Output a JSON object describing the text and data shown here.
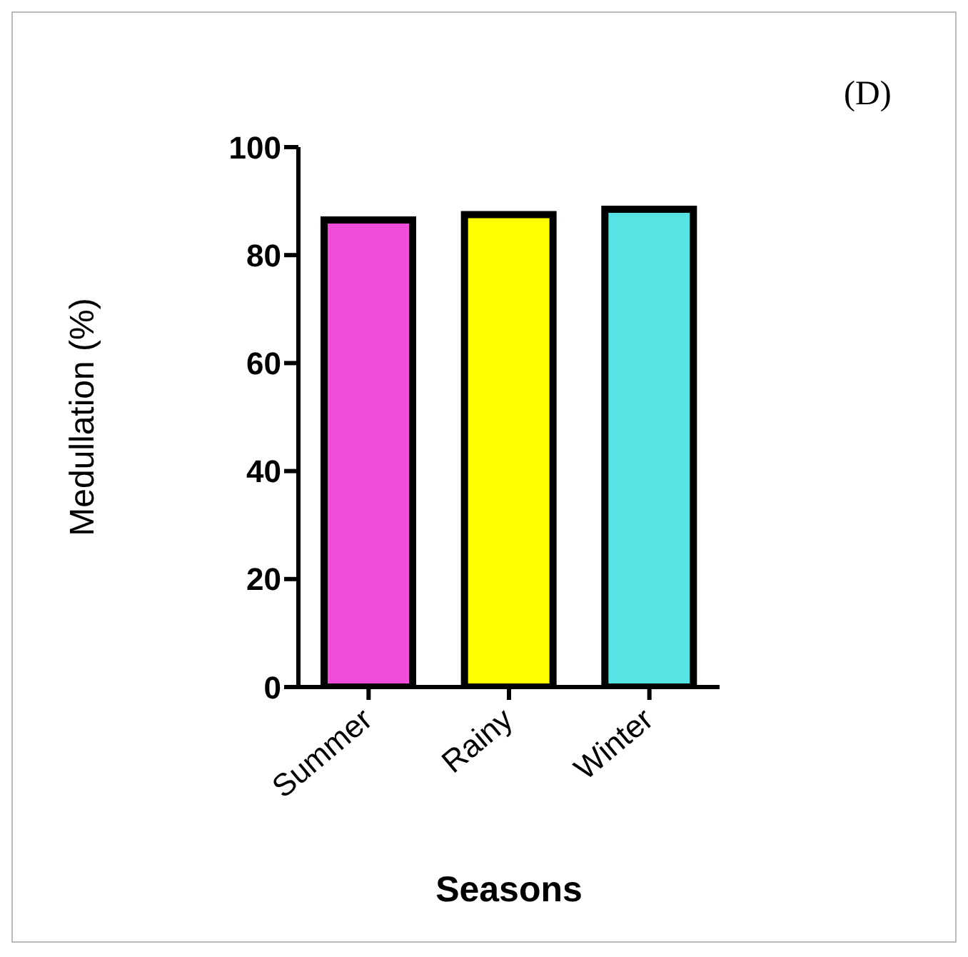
{
  "chart_data": {
    "type": "bar",
    "xlabel": "Seasons",
    "ylabel": "Medullation (%)",
    "categories": [
      "Summer",
      "Rainy",
      "Winter"
    ],
    "values": [
      86.5,
      87.5,
      88.5
    ],
    "colors": [
      "#f04ddb",
      "#ffff00",
      "#55e3e3"
    ],
    "ylim": [
      0,
      100
    ],
    "yticks": [
      0,
      20,
      40,
      60,
      80,
      100
    ],
    "grid": false,
    "legend": false,
    "annotations": [
      "(D)"
    ]
  }
}
